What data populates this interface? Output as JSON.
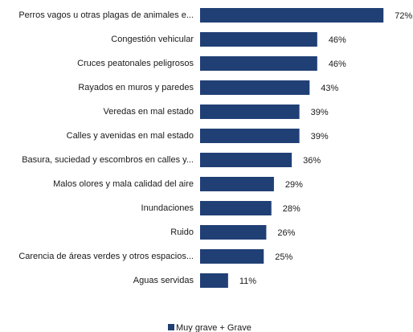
{
  "chart_data": {
    "type": "barh",
    "categories": [
      "Perros vagos u otras plagas de animales e...",
      "Congestión vehicular",
      "Cruces peatonales peligrosos",
      "Rayados en muros y paredes",
      "Veredas en mal estado",
      "Calles y avenidas en mal estado",
      "Basura, suciedad y escombros en calles y...",
      "Malos olores y mala calidad del aire",
      "Inundaciones",
      "Ruido",
      "Carencia de áreas verdes y otros espacios...",
      "Aguas servidas"
    ],
    "series": [
      {
        "name": "Muy grave + Grave",
        "color": "#203f75",
        "values": [
          72,
          46,
          46,
          43,
          39,
          39,
          36,
          29,
          28,
          26,
          25,
          11
        ],
        "value_labels": [
          "72%",
          "46%",
          "46%",
          "43%",
          "39%",
          "39%",
          "36%",
          "29%",
          "28%",
          "26%",
          "25%",
          "11%"
        ]
      }
    ],
    "xlim": [
      0,
      80
    ],
    "legend": "bottom"
  }
}
